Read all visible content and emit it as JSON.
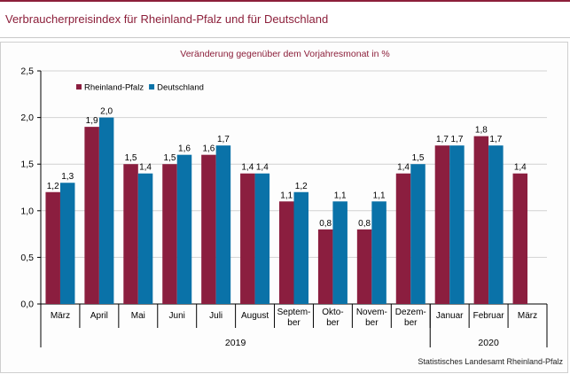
{
  "page_title": "Verbraucherpreisindex  für Rheinland-Pfalz  und für Deutschland",
  "source": "Statistisches Landesamt Rheinland-Pfalz",
  "colors": {
    "rheinland_pfalz": "#8b1e3f",
    "deutschland": "#0a72a8",
    "title": "#8c1f3a"
  },
  "chart_data": {
    "type": "bar",
    "title": "",
    "subtitle": "Veränderung  gegenüber  dem  Vorjahresmonat  in  %",
    "xlabel": "",
    "ylabel": "",
    "ylim": [
      0,
      2.5
    ],
    "y_ticks": [
      "0,0",
      "0,5",
      "1,0",
      "1,5",
      "2,0",
      "2,5"
    ],
    "grid": true,
    "legend_position": "top-left",
    "categories": [
      [
        "März"
      ],
      [
        "April"
      ],
      [
        "Mai"
      ],
      [
        "Juni"
      ],
      [
        "Juli"
      ],
      [
        "August"
      ],
      [
        "Septem-",
        "ber"
      ],
      [
        "Okto-",
        "ber"
      ],
      [
        "Novem-",
        "ber"
      ],
      [
        "Dezem-",
        "ber"
      ],
      [
        "Januar"
      ],
      [
        "Februar"
      ],
      [
        "März"
      ]
    ],
    "year_groups": [
      {
        "label": "2019",
        "start": 0,
        "end": 9
      },
      {
        "label": "2020",
        "start": 10,
        "end": 12
      }
    ],
    "series": [
      {
        "name": "Rheinland-Pfalz",
        "values": [
          1.2,
          1.9,
          1.5,
          1.5,
          1.6,
          1.4,
          1.1,
          0.8,
          0.8,
          1.4,
          1.7,
          1.8,
          1.4
        ],
        "labels": [
          "1,2",
          "1,9",
          "1,5",
          "1,5",
          "1,6",
          "1,4",
          "1,1",
          "0,8",
          "0,8",
          "1,4",
          "1,7",
          "1,8",
          "1,4"
        ]
      },
      {
        "name": "Deutschland",
        "values": [
          1.3,
          2.0,
          1.4,
          1.6,
          1.7,
          1.4,
          1.2,
          1.1,
          1.1,
          1.5,
          1.7,
          1.7,
          null
        ],
        "labels": [
          "1,3",
          "2,0",
          "1,4",
          "1,6",
          "1,7",
          "1,4",
          "1,2",
          "1,1",
          "1,1",
          "1,5",
          "1,7",
          "1,7",
          ""
        ]
      }
    ]
  }
}
